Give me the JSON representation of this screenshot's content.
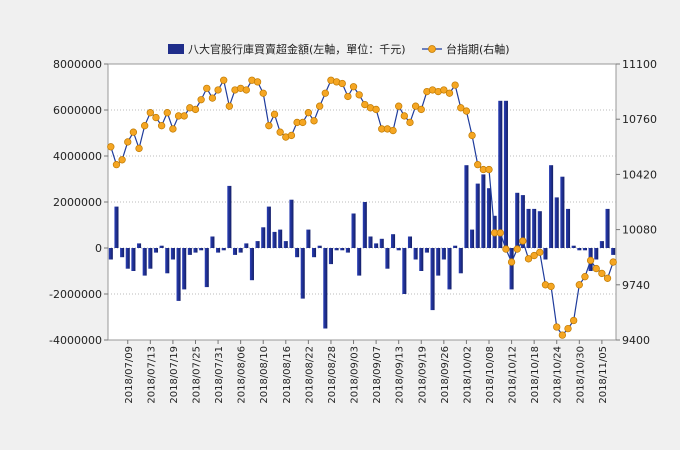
{
  "chart_data": {
    "type": "bar+line",
    "x_labels": [
      "2018/07/09",
      "2018/07/13",
      "2018/07/19",
      "2018/07/25",
      "2018/07/31",
      "2018/08/06",
      "2018/08/10",
      "2018/08/16",
      "2018/08/22",
      "2018/08/28",
      "2018/09/03",
      "2018/09/07",
      "2018/09/13",
      "2018/09/19",
      "2018/09/26",
      "2018/10/02",
      "2018/10/08",
      "2018/10/12",
      "2018/10/18",
      "2018/10/24",
      "2018/10/30",
      "2018/11/05"
    ],
    "x_label_indices": [
      3,
      7,
      11,
      15,
      19,
      23,
      27,
      31,
      35,
      39,
      43,
      47,
      51,
      55,
      59,
      63,
      67,
      71,
      75,
      79,
      83,
      87
    ],
    "n_points": 90,
    "left_axis": {
      "min": -4000000,
      "max": 8000000,
      "ticks": [
        -4000000,
        -2000000,
        0,
        2000000,
        4000000,
        6000000,
        8000000
      ],
      "tick_labels": [
        "-4000000",
        "-2000000",
        "0",
        "2000000",
        "4000000",
        "6000000",
        "8000000"
      ]
    },
    "right_axis": {
      "min": 9400,
      "max": 11100,
      "ticks": [
        9400,
        9740,
        10080,
        10420,
        10760,
        11100
      ],
      "tick_labels": [
        "9400",
        "9740",
        "10080",
        "10420",
        "10760",
        "11100"
      ]
    },
    "series": [
      {
        "name": "八大官股行庫買賣超金額(左軸，單位：千元)",
        "type": "bar",
        "axis": "left",
        "color": "#1f2d8a",
        "values": [
          -500000,
          1800000,
          -400000,
          -900000,
          -1000000,
          200000,
          -1200000,
          -900000,
          -200000,
          100000,
          -1100000,
          -500000,
          -2300000,
          -1800000,
          -300000,
          -200000,
          -100000,
          -1700000,
          500000,
          -200000,
          -100000,
          2700000,
          -300000,
          -200000,
          200000,
          -1400000,
          300000,
          900000,
          1800000,
          700000,
          800000,
          300000,
          2100000,
          -400000,
          -2200000,
          800000,
          -400000,
          100000,
          -3500000,
          -700000,
          -100000,
          -100000,
          -200000,
          1500000,
          -1200000,
          2000000,
          500000,
          200000,
          400000,
          -900000,
          600000,
          -100000,
          -2000000,
          500000,
          -500000,
          -1000000,
          -200000,
          -2700000,
          -1200000,
          -500000,
          -1800000,
          100000,
          -1100000,
          3600000,
          800000,
          2800000,
          3200000,
          2600000,
          1400000,
          6400000,
          6400000,
          -1800000,
          2400000,
          2300000,
          1700000,
          1700000,
          1600000,
          -500000,
          3600000,
          2200000,
          3100000,
          1700000,
          100000,
          -100000,
          -100000,
          -1000000,
          -500000,
          300000,
          1700000,
          -300000
        ]
      },
      {
        "name": "台指期(右軸)",
        "type": "line",
        "axis": "right",
        "color": "#1f3c9c",
        "marker_color": "#f5a623",
        "values": [
          10590,
          10480,
          10510,
          10620,
          10680,
          10580,
          10720,
          10800,
          10770,
          10720,
          10800,
          10700,
          10780,
          10780,
          10830,
          10820,
          10880,
          10950,
          10890,
          10940,
          11000,
          10840,
          10940,
          10950,
          10940,
          11000,
          10990,
          10920,
          10720,
          10790,
          10680,
          10650,
          10660,
          10740,
          10740,
          10800,
          10750,
          10840,
          10920,
          11000,
          10990,
          10980,
          10900,
          10960,
          10910,
          10850,
          10830,
          10820,
          10700,
          10700,
          10690,
          10840,
          10780,
          10740,
          10840,
          10820,
          10930,
          10940,
          10930,
          10940,
          10920,
          10970,
          10830,
          10810,
          10660,
          10480,
          10450,
          10450,
          10060,
          10060,
          9960,
          9880,
          9960,
          10010,
          9900,
          9920,
          9940,
          9740,
          9730,
          9480,
          9430,
          9470,
          9520,
          9740,
          9790,
          9890,
          9840,
          9810,
          9780,
          9880
        ]
      }
    ],
    "legend_position": "top",
    "grid": "horizontal-dotted"
  }
}
